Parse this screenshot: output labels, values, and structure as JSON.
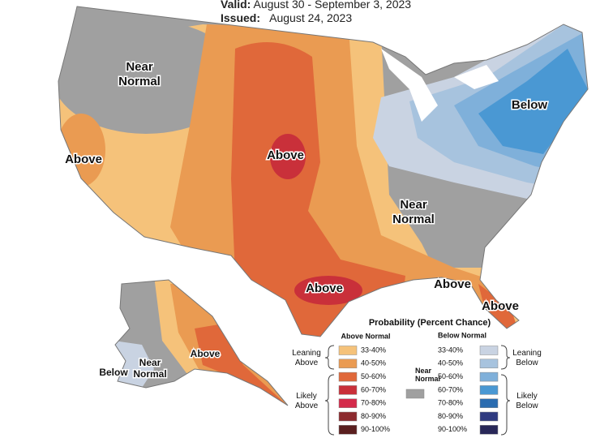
{
  "header": {
    "valid_label": "Valid:",
    "valid_date": "August 30 - September 3, 2023",
    "issued_label": "Issued:",
    "issued_date": "August 24, 2023"
  },
  "map_labels": [
    {
      "lines": [
        "Near",
        "Normal"
      ]
    },
    {
      "lines": [
        "Above"
      ]
    },
    {
      "lines": [
        "Above"
      ]
    },
    {
      "lines": [
        "Below"
      ]
    },
    {
      "lines": [
        "Near",
        "Normal"
      ]
    },
    {
      "lines": [
        "Above"
      ]
    },
    {
      "lines": [
        "Above"
      ]
    },
    {
      "lines": [
        "Above"
      ]
    },
    {
      "lines": [
        "Near",
        "Normal"
      ]
    },
    {
      "lines": [
        "Below"
      ]
    },
    {
      "lines": [
        "Above"
      ]
    }
  ],
  "legend": {
    "title": "Probability (Percent Chance)",
    "above_heading": "Above Normal",
    "below_heading": "Below Normal",
    "above": [
      {
        "label": "33-40%",
        "color": "#f5c27a"
      },
      {
        "label": "40-50%",
        "color": "#ea9b52"
      },
      {
        "label": "50-60%",
        "color": "#e0683a"
      },
      {
        "label": "60-70%",
        "color": "#c9303a"
      },
      {
        "label": "70-80%",
        "color": "#d42a4a"
      },
      {
        "label": "80-90%",
        "color": "#8c2a2e"
      },
      {
        "label": "90-100%",
        "color": "#5a1f1f"
      }
    ],
    "below": [
      {
        "label": "33-40%",
        "color": "#c9d3e2"
      },
      {
        "label": "40-50%",
        "color": "#a7c3de"
      },
      {
        "label": "50-60%",
        "color": "#7fb0da"
      },
      {
        "label": "60-70%",
        "color": "#4a98d3"
      },
      {
        "label": "70-80%",
        "color": "#2a6cb0"
      },
      {
        "label": "80-90%",
        "color": "#2f3a80"
      },
      {
        "label": "90-100%",
        "color": "#282758"
      }
    ],
    "near_normal": {
      "lines": [
        "Near",
        "Normal"
      ],
      "color": "#a0a0a0"
    },
    "groups": [
      {
        "lines": [
          "Leaning",
          "Above"
        ]
      },
      {
        "lines": [
          "Likely",
          "Above"
        ]
      },
      {
        "lines": [
          "Leaning",
          "Below"
        ]
      },
      {
        "lines": [
          "Likely",
          "Below"
        ]
      }
    ]
  }
}
